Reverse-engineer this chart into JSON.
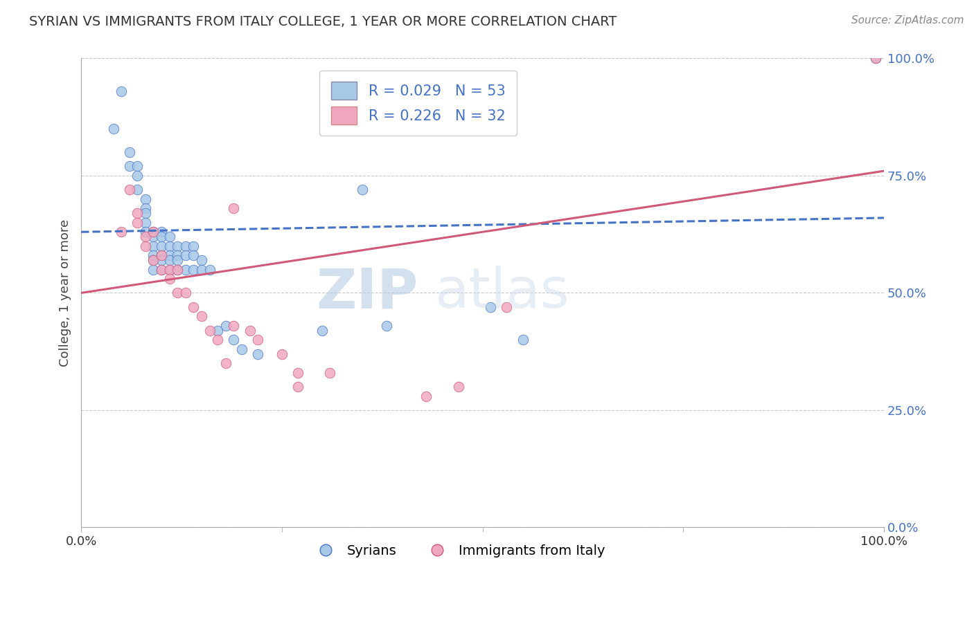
{
  "title": "SYRIAN VS IMMIGRANTS FROM ITALY COLLEGE, 1 YEAR OR MORE CORRELATION CHART",
  "source": "Source: ZipAtlas.com",
  "ylabel": "College, 1 year or more",
  "xlim": [
    0.0,
    1.0
  ],
  "ylim": [
    0.0,
    1.0
  ],
  "ytick_labels": [
    "0.0%",
    "25.0%",
    "50.0%",
    "75.0%",
    "100.0%"
  ],
  "ytick_positions": [
    0.0,
    0.25,
    0.5,
    0.75,
    1.0
  ],
  "legend_r_blue": "R = 0.029",
  "legend_n_blue": "N = 53",
  "legend_r_pink": "R = 0.226",
  "legend_n_pink": "N = 32",
  "legend_label_blue": "Syrians",
  "legend_label_pink": "Immigrants from Italy",
  "blue_color": "#a8c8e8",
  "pink_color": "#f0a8c0",
  "line_blue": "#4472c4",
  "line_pink": "#d05878",
  "watermark_zip": "ZIP",
  "watermark_atlas": "atlas",
  "blue_x": [
    0.04,
    0.05,
    0.06,
    0.06,
    0.07,
    0.07,
    0.07,
    0.08,
    0.08,
    0.08,
    0.08,
    0.08,
    0.09,
    0.09,
    0.09,
    0.09,
    0.09,
    0.09,
    0.1,
    0.1,
    0.1,
    0.1,
    0.1,
    0.1,
    0.11,
    0.11,
    0.11,
    0.11,
    0.11,
    0.12,
    0.12,
    0.12,
    0.12,
    0.13,
    0.13,
    0.13,
    0.14,
    0.14,
    0.14,
    0.15,
    0.15,
    0.16,
    0.17,
    0.18,
    0.19,
    0.2,
    0.22,
    0.3,
    0.38,
    0.51,
    0.55,
    0.35,
    0.99
  ],
  "blue_y": [
    0.85,
    0.93,
    0.8,
    0.77,
    0.77,
    0.75,
    0.72,
    0.7,
    0.68,
    0.67,
    0.65,
    0.63,
    0.63,
    0.62,
    0.6,
    0.58,
    0.57,
    0.55,
    0.63,
    0.62,
    0.6,
    0.58,
    0.57,
    0.55,
    0.62,
    0.6,
    0.58,
    0.57,
    0.55,
    0.6,
    0.58,
    0.57,
    0.55,
    0.6,
    0.58,
    0.55,
    0.6,
    0.58,
    0.55,
    0.57,
    0.55,
    0.55,
    0.42,
    0.43,
    0.4,
    0.38,
    0.37,
    0.42,
    0.43,
    0.47,
    0.4,
    0.72,
    1.0
  ],
  "pink_x": [
    0.05,
    0.06,
    0.07,
    0.07,
    0.08,
    0.08,
    0.09,
    0.09,
    0.1,
    0.1,
    0.11,
    0.11,
    0.12,
    0.12,
    0.13,
    0.14,
    0.15,
    0.16,
    0.17,
    0.18,
    0.19,
    0.19,
    0.21,
    0.22,
    0.25,
    0.27,
    0.27,
    0.31,
    0.43,
    0.47,
    0.53,
    0.99
  ],
  "pink_y": [
    0.63,
    0.72,
    0.67,
    0.65,
    0.62,
    0.6,
    0.57,
    0.63,
    0.58,
    0.55,
    0.55,
    0.53,
    0.5,
    0.55,
    0.5,
    0.47,
    0.45,
    0.42,
    0.4,
    0.35,
    0.43,
    0.68,
    0.42,
    0.4,
    0.37,
    0.33,
    0.3,
    0.33,
    0.28,
    0.3,
    0.47,
    1.0
  ],
  "marker_size": 110,
  "blue_intercept": 0.63,
  "blue_slope": 0.03,
  "pink_intercept": 0.5,
  "pink_slope": 0.26
}
